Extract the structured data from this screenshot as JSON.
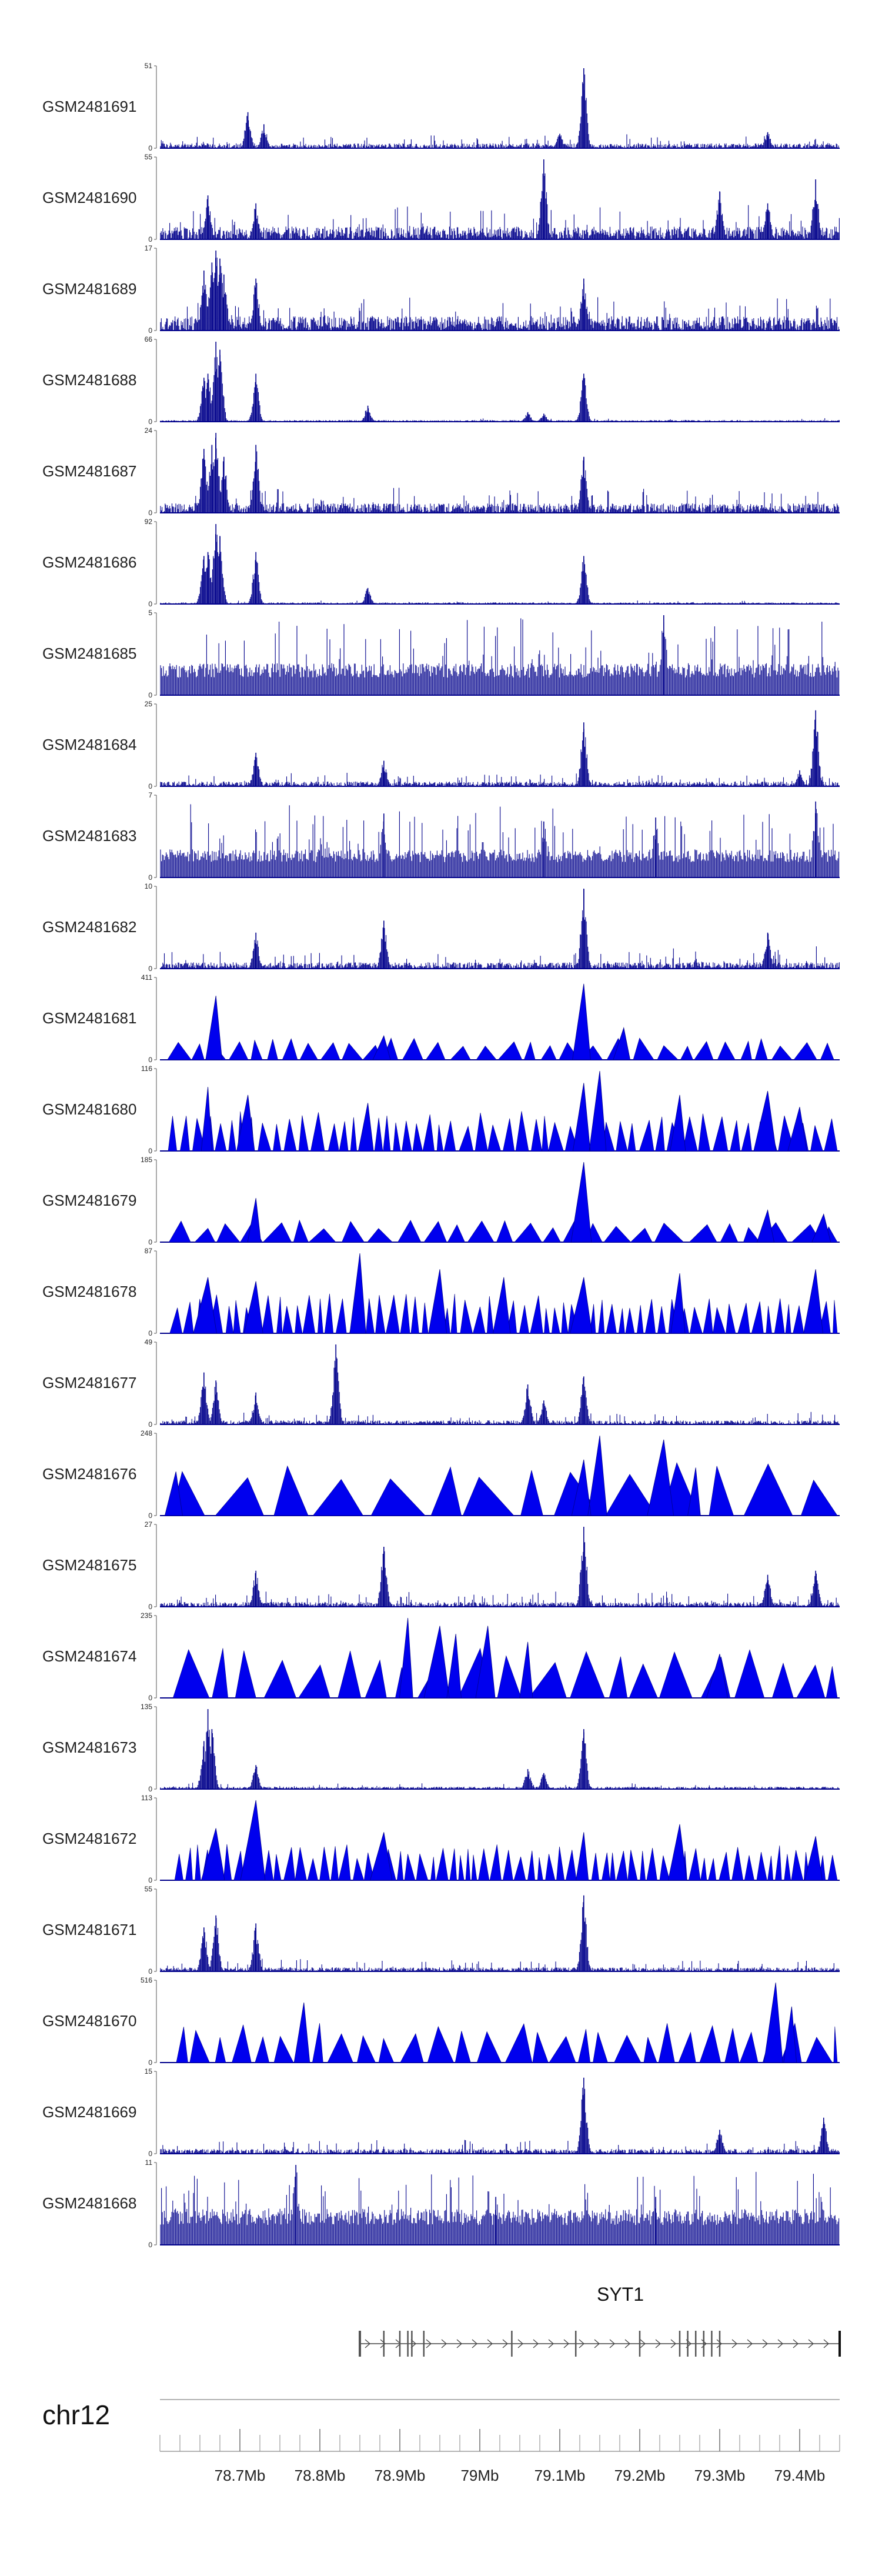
{
  "chart_data": {
    "type": "area",
    "title": "",
    "chromosome": "chr12",
    "x_unit": "Mb",
    "xlim": [
      78.6,
      79.45
    ],
    "colors": {
      "signal": "#00008b",
      "signal_fill": "#0000ee",
      "axis": "#555555",
      "gene": "#444444"
    },
    "tracks": [
      {
        "name": "GSM2481691",
        "ymax": "51",
        "ymin": "0",
        "style": "dense",
        "base": 0.06,
        "noise": 0.12,
        "peaks": [
          [
            78.71,
            0.45
          ],
          [
            78.73,
            0.3
          ],
          [
            79.13,
            1.0
          ],
          [
            79.1,
            0.18
          ],
          [
            79.36,
            0.2
          ]
        ]
      },
      {
        "name": "GSM2481690",
        "ymax": "55",
        "ymin": "0",
        "style": "dense",
        "base": 0.16,
        "noise": 0.35,
        "peaks": [
          [
            78.66,
            0.55
          ],
          [
            78.72,
            0.45
          ],
          [
            79.08,
            1.0
          ],
          [
            79.3,
            0.6
          ],
          [
            79.42,
            0.75
          ],
          [
            79.36,
            0.45
          ]
        ]
      },
      {
        "name": "GSM2481689",
        "ymax": "17",
        "ymin": "0",
        "style": "dense",
        "base": 0.18,
        "noise": 0.3,
        "peaks": [
          [
            78.655,
            0.75
          ],
          [
            78.665,
            0.85
          ],
          [
            78.67,
            1.0
          ],
          [
            78.675,
            0.9
          ],
          [
            78.68,
            0.7
          ],
          [
            78.72,
            0.65
          ],
          [
            79.13,
            0.65
          ]
        ]
      },
      {
        "name": "GSM2481688",
        "ymax": "66",
        "ymin": "0",
        "style": "sparse",
        "base": 0.02,
        "noise": 0.03,
        "peaks": [
          [
            78.655,
            0.55
          ],
          [
            78.66,
            0.6
          ],
          [
            78.67,
            1.0
          ],
          [
            78.675,
            0.9
          ],
          [
            78.72,
            0.6
          ],
          [
            78.86,
            0.2
          ],
          [
            79.06,
            0.12
          ],
          [
            79.08,
            0.1
          ],
          [
            79.13,
            0.6
          ]
        ]
      },
      {
        "name": "GSM2481687",
        "ymax": "24",
        "ymin": "0",
        "style": "dense",
        "base": 0.12,
        "noise": 0.25,
        "peaks": [
          [
            78.655,
            0.8
          ],
          [
            78.665,
            0.85
          ],
          [
            78.67,
            1.0
          ],
          [
            78.68,
            0.7
          ],
          [
            78.72,
            0.85
          ],
          [
            79.13,
            0.7
          ]
        ]
      },
      {
        "name": "GSM2481686",
        "ymax": "92",
        "ymin": "0",
        "style": "sparse",
        "base": 0.02,
        "noise": 0.03,
        "peaks": [
          [
            78.655,
            0.6
          ],
          [
            78.66,
            0.65
          ],
          [
            78.67,
            1.0
          ],
          [
            78.675,
            0.85
          ],
          [
            78.72,
            0.65
          ],
          [
            78.86,
            0.2
          ],
          [
            79.13,
            0.6
          ]
        ]
      },
      {
        "name": "GSM2481685",
        "ymax": "5",
        "ymin": "0",
        "style": "spiky",
        "base": 0.4,
        "noise": 0.6,
        "peaks": [
          [
            79.23,
            1.0
          ]
        ]
      },
      {
        "name": "GSM2481684",
        "ymax": "25",
        "ymin": "0",
        "style": "dense",
        "base": 0.06,
        "noise": 0.12,
        "peaks": [
          [
            78.72,
            0.42
          ],
          [
            78.88,
            0.32
          ],
          [
            79.13,
            0.8
          ],
          [
            79.42,
            0.95
          ],
          [
            79.4,
            0.2
          ]
        ]
      },
      {
        "name": "GSM2481683",
        "ymax": "7",
        "ymin": "0",
        "style": "spiky",
        "base": 0.35,
        "noise": 0.6,
        "peaks": [
          [
            78.88,
            0.8
          ],
          [
            79.08,
            0.7
          ],
          [
            79.22,
            0.75
          ],
          [
            79.42,
            0.95
          ]
        ]
      },
      {
        "name": "GSM2481682",
        "ymax": "10",
        "ymin": "0",
        "style": "dense",
        "base": 0.08,
        "noise": 0.2,
        "peaks": [
          [
            78.72,
            0.45
          ],
          [
            78.88,
            0.6
          ],
          [
            79.13,
            1.0
          ],
          [
            79.36,
            0.45
          ]
        ]
      },
      {
        "name": "GSM2481681",
        "ymax": "411",
        "ymin": "0",
        "style": "triangles",
        "tri_height": 0.22,
        "tri_count": 40,
        "peaks": [
          [
            78.67,
            0.8
          ],
          [
            78.88,
            0.3
          ],
          [
            79.13,
            0.95
          ],
          [
            79.18,
            0.4
          ]
        ]
      },
      {
        "name": "GSM2481680",
        "ymax": "116",
        "ymin": "0",
        "style": "triangles",
        "tri_height": 0.4,
        "tri_count": 60,
        "peaks": [
          [
            78.66,
            0.8
          ],
          [
            78.71,
            0.7
          ],
          [
            78.86,
            0.6
          ],
          [
            79.13,
            0.85
          ],
          [
            79.15,
            1.0
          ],
          [
            79.25,
            0.7
          ],
          [
            79.36,
            0.75
          ],
          [
            79.4,
            0.55
          ]
        ]
      },
      {
        "name": "GSM2481679",
        "ymax": "185",
        "ymin": "0",
        "style": "triangles",
        "tri_height": 0.22,
        "tri_count": 32,
        "peaks": [
          [
            78.72,
            0.55
          ],
          [
            79.13,
            1.0
          ],
          [
            79.36,
            0.4
          ],
          [
            79.43,
            0.35
          ]
        ]
      },
      {
        "name": "GSM2481678",
        "ymax": "87",
        "ymin": "0",
        "style": "triangles",
        "tri_height": 0.4,
        "tri_count": 70,
        "peaks": [
          [
            78.66,
            0.7
          ],
          [
            78.72,
            0.65
          ],
          [
            78.85,
            1.0
          ],
          [
            78.95,
            0.8
          ],
          [
            79.03,
            0.7
          ],
          [
            79.13,
            0.7
          ],
          [
            79.25,
            0.75
          ],
          [
            79.42,
            0.8
          ]
        ]
      },
      {
        "name": "GSM2481677",
        "ymax": "49",
        "ymin": "0",
        "style": "dense",
        "base": 0.05,
        "noise": 0.12,
        "peaks": [
          [
            78.655,
            0.65
          ],
          [
            78.67,
            0.55
          ],
          [
            78.72,
            0.4
          ],
          [
            78.82,
            1.0
          ],
          [
            79.06,
            0.5
          ],
          [
            79.08,
            0.3
          ],
          [
            79.13,
            0.6
          ]
        ]
      },
      {
        "name": "GSM2481676",
        "ymax": "248",
        "ymin": "0",
        "style": "triangles",
        "tri_height": 0.55,
        "tri_count": 18,
        "peaks": [
          [
            78.62,
            0.55
          ],
          [
            79.13,
            0.7
          ],
          [
            79.15,
            1.0
          ],
          [
            79.23,
            0.95
          ],
          [
            79.27,
            0.6
          ]
        ]
      },
      {
        "name": "GSM2481675",
        "ymax": "27",
        "ymin": "0",
        "style": "dense",
        "base": 0.06,
        "noise": 0.14,
        "peaks": [
          [
            78.72,
            0.45
          ],
          [
            78.88,
            0.75
          ],
          [
            79.13,
            1.0
          ],
          [
            79.36,
            0.4
          ],
          [
            79.42,
            0.45
          ]
        ]
      },
      {
        "name": "GSM2481674",
        "ymax": "235",
        "ymin": "0",
        "style": "triangles",
        "tri_height": 0.5,
        "tri_count": 26,
        "peaks": [
          [
            78.91,
            1.0
          ],
          [
            78.95,
            0.9
          ],
          [
            78.97,
            0.8
          ],
          [
            79.01,
            0.9
          ],
          [
            79.06,
            0.7
          ],
          [
            79.3,
            0.55
          ]
        ]
      },
      {
        "name": "GSM2481673",
        "ymax": "135",
        "ymin": "0",
        "style": "sparse",
        "base": 0.03,
        "noise": 0.05,
        "peaks": [
          [
            78.655,
            0.6
          ],
          [
            78.66,
            1.0
          ],
          [
            78.665,
            0.75
          ],
          [
            78.72,
            0.3
          ],
          [
            79.06,
            0.25
          ],
          [
            79.08,
            0.2
          ],
          [
            79.13,
            0.75
          ]
        ]
      },
      {
        "name": "GSM2481672",
        "ymax": "113",
        "ymin": "0",
        "style": "triangles",
        "tri_height": 0.36,
        "tri_count": 80,
        "peaks": [
          [
            78.67,
            0.65
          ],
          [
            78.72,
            1.0
          ],
          [
            78.88,
            0.6
          ],
          [
            79.13,
            0.6
          ],
          [
            79.25,
            0.7
          ],
          [
            79.42,
            0.55
          ]
        ]
      },
      {
        "name": "GSM2481671",
        "ymax": "55",
        "ymin": "0",
        "style": "dense",
        "base": 0.05,
        "noise": 0.12,
        "peaks": [
          [
            78.655,
            0.55
          ],
          [
            78.67,
            0.7
          ],
          [
            78.72,
            0.6
          ],
          [
            79.13,
            0.95
          ]
        ]
      },
      {
        "name": "GSM2481670",
        "ymax": "516",
        "ymin": "0",
        "style": "triangles",
        "tri_height": 0.4,
        "tri_count": 36,
        "peaks": [
          [
            78.78,
            0.75
          ],
          [
            79.37,
            1.0
          ],
          [
            79.39,
            0.7
          ]
        ]
      },
      {
        "name": "GSM2481669",
        "ymax": "15",
        "ymin": "0",
        "style": "dense",
        "base": 0.06,
        "noise": 0.14,
        "peaks": [
          [
            79.13,
            0.95
          ],
          [
            79.43,
            0.45
          ],
          [
            79.3,
            0.3
          ]
        ]
      },
      {
        "name": "GSM2481668",
        "ymax": "11",
        "ymin": "0",
        "style": "spiky",
        "base": 0.45,
        "noise": 0.55,
        "peaks": [
          [
            78.77,
            1.0
          ],
          [
            79.02,
            0.6
          ],
          [
            79.22,
            0.6
          ]
        ]
      }
    ],
    "gene": {
      "name": "SYT1",
      "start": 78.85,
      "end": 79.45,
      "strand": "+",
      "exons": [
        78.85,
        78.88,
        78.9,
        78.91,
        78.915,
        78.93,
        79.04,
        79.12,
        79.2,
        79.25,
        79.26,
        79.27,
        79.28,
        79.29,
        79.3,
        79.45
      ]
    },
    "axis": {
      "ticks": [
        78.7,
        78.8,
        78.9,
        79.0,
        79.1,
        79.2,
        79.3,
        79.4
      ],
      "tick_labels": [
        "78.7Mb",
        "78.8Mb",
        "78.9Mb",
        "79Mb",
        "79.1Mb",
        "79.2Mb",
        "79.3Mb",
        "79.4Mb"
      ],
      "minor_step": 0.025
    }
  }
}
